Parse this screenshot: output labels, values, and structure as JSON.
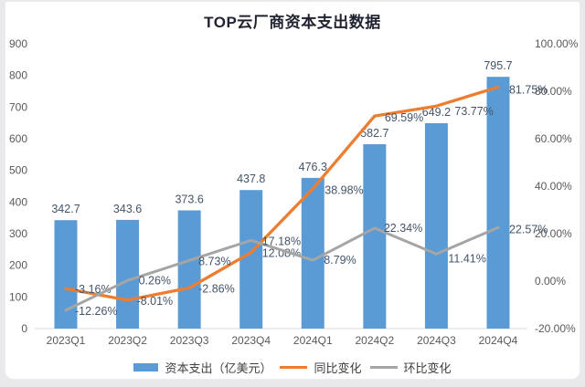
{
  "title": "TOP云厂商资本支出数据",
  "colors": {
    "bar": "#5B9BD5",
    "yoy_line": "#ED7D31",
    "qoq_line": "#A5A5A5",
    "data_label": "#44546A",
    "axis_text": "#595959",
    "axis_line": "#D9D9D9",
    "title_text": "#1f2430"
  },
  "chart_data": {
    "type": "combo-bar-line",
    "title": "TOP云厂商资本支出数据",
    "categories": [
      "2023Q1",
      "2023Q2",
      "2023Q3",
      "2023Q4",
      "2024Q1",
      "2024Q2",
      "2024Q3",
      "2024Q4"
    ],
    "bar_series": {
      "name": "资本支出（亿美元）",
      "axis": "left",
      "color": "#5B9BD5",
      "values": [
        342.7,
        343.6,
        373.6,
        437.8,
        476.3,
        582.7,
        649.2,
        795.7
      ],
      "labels": [
        "342.7",
        "343.6",
        "373.6",
        "437.8",
        "476.3",
        "582.7",
        "649.2",
        "795.7"
      ]
    },
    "line_series": [
      {
        "name": "同比变化",
        "axis": "right",
        "color": "#ED7D31",
        "values": [
          -3.16,
          -8.01,
          -2.86,
          12.08,
          38.98,
          69.59,
          73.77,
          81.75
        ],
        "labels": [
          "-3.16%",
          "-8.01%",
          "-2.86%",
          "12.08%",
          "38.98%",
          "69.59%",
          "73.77%",
          "81.75%"
        ]
      },
      {
        "name": "环比变化",
        "axis": "right",
        "color": "#A5A5A5",
        "values": [
          -12.26,
          0.26,
          8.73,
          17.18,
          8.79,
          22.34,
          11.41,
          22.57
        ],
        "labels": [
          "-12.26%",
          "0.26%",
          "8.73%",
          "17.18%",
          "8.79%",
          "22.34%",
          "11.41%",
          "22.57%"
        ]
      }
    ],
    "left_axis": {
      "min": 0,
      "max": 900,
      "step": 100,
      "tick_labels": [
        "0",
        "100",
        "200",
        "300",
        "400",
        "500",
        "600",
        "700",
        "800",
        "900"
      ]
    },
    "right_axis": {
      "min": -20,
      "max": 100,
      "step": 20,
      "tick_labels": [
        "-20.00%",
        "0.00%",
        "20.00%",
        "40.00%",
        "60.00%",
        "80.00%",
        "100.00%"
      ]
    },
    "grid": false,
    "legend_position": "bottom"
  },
  "legend": {
    "items": [
      {
        "label": "资本支出（亿美元）",
        "swatch": "bar",
        "color": "#5B9BD5"
      },
      {
        "label": "同比变化",
        "swatch": "line",
        "color": "#ED7D31"
      },
      {
        "label": "环比变化",
        "swatch": "line",
        "color": "#A5A5A5"
      }
    ]
  }
}
